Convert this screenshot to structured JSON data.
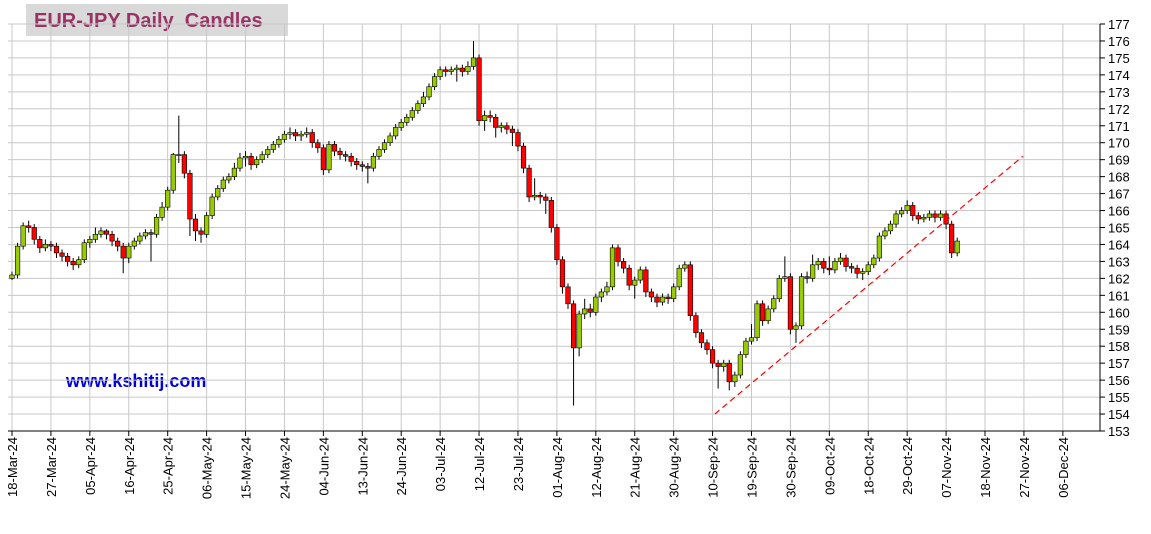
{
  "chart_data": {
    "type": "candlestick",
    "title": "EUR-JPY Daily  Candles",
    "watermark": "www.kshitij.com",
    "x": [
      0,
      1,
      2,
      3,
      4,
      5,
      6,
      7,
      8,
      9,
      10,
      11,
      12,
      13,
      14,
      15,
      16,
      17,
      18,
      19,
      20,
      21,
      22,
      23,
      24,
      25,
      26,
      27,
      28,
      29,
      30,
      31,
      32,
      33,
      34,
      35,
      36,
      37,
      38,
      39,
      40,
      41,
      42,
      43,
      44,
      45,
      46,
      47,
      48,
      49,
      50,
      51,
      52,
      53,
      54,
      55,
      56,
      57,
      58,
      59,
      60,
      61,
      62,
      63,
      64,
      65,
      66,
      67,
      68,
      69,
      70,
      71,
      72,
      73,
      74,
      75,
      76,
      77,
      78,
      79,
      80,
      81,
      82,
      83,
      84,
      85,
      86,
      87,
      88,
      89,
      90,
      91,
      92,
      93,
      94,
      95,
      96,
      97,
      98,
      99,
      100,
      101,
      102,
      103,
      104,
      105,
      106,
      107,
      108,
      109,
      110,
      111,
      112,
      113,
      114,
      115,
      116,
      117,
      118,
      119,
      120,
      121,
      122,
      123,
      124,
      125,
      126,
      127,
      128,
      129,
      130,
      131,
      132,
      133,
      134,
      135,
      136,
      137,
      138,
      139,
      140,
      141,
      142,
      143,
      144,
      145,
      146,
      147,
      148,
      149,
      150,
      151,
      152,
      153,
      154,
      155,
      156,
      157,
      158,
      159,
      160,
      161,
      162,
      163,
      164,
      165,
      166,
      167,
      168,
      169,
      170
    ],
    "open": [
      162.0,
      162.2,
      163.9,
      165.1,
      165.0,
      164.3,
      163.8,
      164.0,
      163.9,
      163.5,
      163.3,
      163.0,
      162.8,
      163.1,
      164.1,
      164.3,
      164.6,
      164.8,
      164.6,
      164.2,
      163.9,
      163.2,
      163.9,
      164.2,
      164.5,
      164.7,
      164.6,
      165.6,
      166.2,
      167.2,
      169.3,
      169.3,
      168.2,
      165.5,
      164.8,
      164.6,
      165.7,
      166.8,
      167.3,
      167.8,
      168.0,
      168.5,
      169.1,
      169.2,
      168.7,
      169.0,
      169.3,
      169.6,
      169.9,
      170.2,
      170.5,
      170.6,
      170.4,
      170.5,
      170.6,
      170.0,
      169.7,
      168.4,
      169.9,
      169.5,
      169.3,
      169.2,
      168.9,
      168.7,
      168.6,
      168.5,
      169.2,
      169.6,
      170.0,
      170.4,
      170.9,
      171.2,
      171.5,
      171.9,
      172.3,
      172.7,
      173.3,
      173.9,
      174.3,
      174.2,
      174.3,
      174.4,
      174.2,
      174.5,
      175.0,
      171.3,
      171.6,
      171.5,
      170.9,
      171.0,
      170.8,
      170.6,
      169.8,
      168.5,
      166.8,
      166.9,
      166.8,
      166.6,
      165.0,
      163.1,
      161.5,
      160.5,
      157.9,
      159.9,
      160.2,
      160.0,
      160.9,
      161.2,
      161.5,
      163.8,
      163.0,
      162.6,
      161.6,
      161.9,
      162.5,
      161.2,
      160.9,
      160.6,
      160.9,
      160.8,
      161.5,
      162.6,
      162.8,
      159.8,
      158.8,
      158.2,
      157.8,
      157.0,
      156.8,
      157.0,
      155.9,
      156.3,
      157.5,
      158.3,
      158.5,
      160.5,
      159.5,
      160.2,
      160.8,
      162.0,
      162.1,
      159.0,
      159.2,
      162.1,
      162.0,
      162.8,
      163.0,
      162.6,
      162.5,
      163.0,
      163.2,
      162.7,
      162.6,
      162.3,
      162.4,
      162.8,
      163.2,
      164.5,
      164.8,
      165.2,
      165.8,
      166.0,
      166.3,
      165.7,
      165.5,
      165.6,
      165.8,
      165.6,
      165.8,
      165.2,
      163.5
    ],
    "high": [
      162.4,
      164.1,
      165.3,
      165.4,
      165.2,
      164.5,
      164.3,
      164.2,
      164.1,
      163.7,
      163.5,
      163.2,
      163.3,
      164.3,
      164.5,
      165.0,
      165.0,
      164.9,
      164.8,
      164.4,
      164.1,
      164.1,
      164.4,
      164.7,
      164.9,
      164.9,
      165.8,
      166.5,
      167.4,
      169.4,
      171.6,
      169.5,
      168.4,
      165.8,
      165.0,
      165.9,
      167.0,
      167.5,
      168.0,
      168.2,
      168.8,
      169.4,
      169.5,
      169.4,
      169.2,
      169.5,
      169.8,
      170.1,
      170.4,
      170.7,
      170.9,
      170.8,
      170.7,
      170.9,
      170.8,
      170.2,
      169.9,
      170.1,
      170.1,
      169.7,
      169.5,
      169.4,
      169.1,
      168.9,
      168.8,
      169.4,
      169.8,
      170.2,
      170.6,
      171.1,
      171.4,
      171.7,
      172.1,
      172.5,
      173.0,
      173.5,
      174.1,
      174.5,
      174.5,
      174.5,
      174.6,
      174.6,
      174.8,
      176.0,
      175.2,
      171.9,
      171.9,
      171.7,
      171.2,
      171.2,
      171.0,
      170.8,
      170.0,
      168.7,
      167.9,
      167.1,
      167.0,
      166.8,
      165.2,
      163.3,
      161.7,
      160.7,
      160.1,
      160.8,
      160.5,
      161.1,
      161.4,
      161.8,
      164.0,
      164.0,
      163.2,
      162.8,
      162.1,
      162.7,
      162.7,
      161.4,
      161.1,
      161.1,
      161.1,
      161.7,
      162.8,
      163.0,
      163.0,
      160.0,
      159.0,
      158.4,
      158.0,
      157.2,
      157.2,
      157.2,
      156.5,
      157.7,
      158.5,
      159.3,
      160.7,
      160.7,
      160.4,
      161.0,
      162.2,
      163.3,
      162.3,
      159.4,
      162.3,
      162.4,
      163.4,
      163.2,
      163.2,
      163.3,
      163.2,
      163.5,
      163.4,
      162.9,
      162.8,
      162.6,
      163.0,
      163.4,
      164.7,
      165.0,
      165.4,
      166.0,
      166.2,
      166.6,
      166.5,
      165.9,
      165.8,
      166.0,
      166.0,
      166.0,
      166.0,
      165.4,
      164.4
    ],
    "low": [
      161.9,
      162.0,
      163.7,
      164.7,
      164.0,
      163.5,
      163.6,
      163.6,
      163.2,
      163.0,
      162.7,
      162.5,
      162.6,
      162.9,
      163.8,
      164.1,
      164.4,
      164.3,
      163.9,
      163.6,
      162.3,
      162.9,
      163.7,
      164.0,
      164.3,
      163.0,
      164.4,
      165.4,
      166.0,
      167.0,
      168.8,
      167.9,
      164.5,
      164.2,
      164.1,
      164.4,
      165.5,
      166.6,
      167.1,
      167.6,
      167.8,
      168.3,
      168.6,
      168.4,
      168.5,
      168.8,
      169.1,
      169.4,
      169.7,
      170.0,
      170.2,
      170.1,
      170.1,
      170.3,
      169.7,
      169.4,
      168.1,
      168.2,
      169.2,
      169.0,
      168.9,
      168.6,
      168.4,
      168.3,
      167.6,
      168.3,
      169.0,
      169.4,
      169.8,
      170.2,
      170.7,
      171.0,
      171.3,
      171.7,
      172.1,
      172.5,
      173.1,
      173.7,
      173.9,
      174.0,
      173.6,
      173.9,
      174.0,
      174.3,
      171.0,
      170.7,
      171.2,
      170.3,
      170.6,
      170.5,
      169.8,
      169.5,
      168.2,
      166.5,
      166.6,
      166.4,
      165.8,
      164.7,
      162.8,
      161.1,
      160.2,
      154.5,
      157.4,
      159.6,
      159.7,
      159.8,
      160.6,
      161.0,
      161.3,
      162.7,
      162.3,
      161.3,
      160.8,
      161.7,
      160.9,
      160.6,
      160.3,
      160.4,
      160.5,
      160.6,
      161.3,
      162.4,
      159.5,
      158.5,
      157.9,
      157.5,
      156.7,
      155.5,
      156.5,
      155.4,
      155.6,
      156.1,
      157.3,
      158.1,
      158.3,
      159.2,
      159.3,
      160.0,
      160.6,
      161.8,
      158.7,
      158.2,
      159.0,
      161.7,
      161.8,
      162.5,
      162.3,
      162.2,
      162.3,
      162.8,
      162.4,
      162.3,
      162.0,
      161.9,
      162.2,
      162.6,
      163.0,
      164.3,
      164.6,
      165.0,
      165.6,
      165.8,
      165.4,
      165.2,
      165.3,
      165.4,
      165.3,
      165.4,
      164.9,
      163.2,
      163.3
    ],
    "close": [
      162.2,
      163.9,
      165.1,
      165.0,
      164.3,
      163.8,
      164.0,
      163.9,
      163.5,
      163.3,
      163.0,
      162.8,
      163.1,
      164.1,
      164.3,
      164.6,
      164.8,
      164.6,
      164.2,
      163.9,
      163.2,
      163.9,
      164.2,
      164.5,
      164.7,
      164.6,
      165.6,
      166.2,
      167.2,
      169.3,
      169.3,
      168.2,
      165.5,
      164.8,
      164.6,
      165.7,
      166.8,
      167.3,
      167.8,
      168.0,
      168.5,
      169.1,
      169.2,
      168.7,
      169.0,
      169.3,
      169.6,
      169.9,
      170.2,
      170.5,
      170.6,
      170.4,
      170.5,
      170.6,
      170.0,
      169.7,
      168.4,
      169.9,
      169.5,
      169.3,
      169.2,
      168.9,
      168.7,
      168.6,
      168.5,
      169.2,
      169.6,
      170.0,
      170.4,
      170.9,
      171.2,
      171.5,
      171.9,
      172.3,
      172.7,
      173.3,
      173.9,
      174.3,
      174.2,
      174.3,
      174.4,
      174.2,
      174.5,
      175.0,
      171.3,
      171.6,
      171.5,
      170.9,
      171.0,
      170.8,
      170.6,
      169.8,
      168.5,
      166.8,
      166.9,
      166.8,
      166.6,
      165.0,
      163.1,
      161.5,
      160.5,
      157.9,
      159.9,
      160.2,
      160.0,
      160.9,
      161.2,
      161.5,
      163.8,
      163.0,
      162.6,
      161.6,
      161.9,
      162.5,
      161.2,
      160.9,
      160.6,
      160.9,
      160.8,
      161.5,
      162.6,
      162.8,
      159.8,
      158.8,
      158.2,
      157.8,
      157.0,
      156.8,
      157.0,
      155.9,
      156.3,
      157.5,
      158.3,
      158.5,
      160.5,
      159.5,
      160.2,
      160.8,
      162.0,
      162.1,
      159.0,
      159.2,
      162.1,
      162.0,
      162.8,
      163.0,
      162.6,
      162.5,
      163.0,
      163.2,
      162.7,
      162.6,
      162.3,
      162.4,
      162.8,
      163.2,
      164.5,
      164.8,
      165.2,
      165.8,
      166.0,
      166.3,
      165.7,
      165.5,
      165.6,
      165.8,
      165.6,
      165.8,
      165.2,
      163.5,
      164.2
    ],
    "up_color": "#99cc00",
    "down_color": "#ff0000",
    "trendline": {
      "x": [
        126.4,
        181.8
      ],
      "y": [
        154.0,
        169.2
      ],
      "color": "#ff0000"
    },
    "xlim": [
      -0.72,
      195.68
    ],
    "ylim": [
      153,
      177
    ],
    "yticks": [
      153,
      154,
      155,
      156,
      157,
      158,
      159,
      160,
      161,
      162,
      163,
      164,
      165,
      166,
      167,
      168,
      169,
      170,
      171,
      172,
      173,
      174,
      175,
      176,
      177
    ],
    "xticks": [
      {
        "value": 0,
        "label": "18-Mar-24"
      },
      {
        "value": 7,
        "label": "27-Mar-24"
      },
      {
        "value": 14,
        "label": "05-Apr-24"
      },
      {
        "value": 21,
        "label": "16-Apr-24"
      },
      {
        "value": 28,
        "label": "25-Apr-24"
      },
      {
        "value": 35,
        "label": "06-May-24"
      },
      {
        "value": 42,
        "label": "15-May-24"
      },
      {
        "value": 49,
        "label": "24-May-24"
      },
      {
        "value": 56,
        "label": "04-Jun-24"
      },
      {
        "value": 63,
        "label": "13-Jun-24"
      },
      {
        "value": 70,
        "label": "24-Jun-24"
      },
      {
        "value": 77,
        "label": "03-Jul-24"
      },
      {
        "value": 84,
        "label": "12-Jul-24"
      },
      {
        "value": 91,
        "label": "23-Jul-24"
      },
      {
        "value": 98,
        "label": "01-Aug-24"
      },
      {
        "value": 105,
        "label": "12-Aug-24"
      },
      {
        "value": 112,
        "label": "21-Aug-24"
      },
      {
        "value": 119,
        "label": "30-Aug-24"
      },
      {
        "value": 126,
        "label": "10-Sep-24"
      },
      {
        "value": 133,
        "label": "19-Sep-24"
      },
      {
        "value": 140,
        "label": "30-Sep-24"
      },
      {
        "value": 147,
        "label": "09-Oct-24"
      },
      {
        "value": 154,
        "label": "18-Oct-24"
      },
      {
        "value": 161,
        "label": "29-Oct-24"
      },
      {
        "value": 168,
        "label": "07-Nov-24"
      },
      {
        "value": 175,
        "label": "18-Nov-24"
      },
      {
        "value": 182,
        "label": "27-Nov-24"
      },
      {
        "value": 189,
        "label": "06-Dec-24"
      }
    ],
    "grid": true
  }
}
